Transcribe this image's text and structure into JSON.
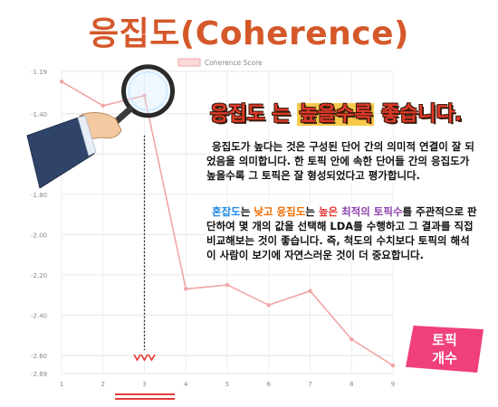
{
  "title": "응집도(Coherence)",
  "headline": {
    "part1": "응집도",
    "part2": "는",
    "part3": "높을수록",
    "part4": "좋습니다."
  },
  "paragraph1": "응집도가 높다는 것은 구성된 단어 간의 의미적 연결이 잘 되었음을 의미합니다. 한 토픽 안에 속한 단어들 간의 응집도가 높을수록 그 토픽은 잘 형성되었다고 평가합니다.",
  "paragraph2": {
    "w1": "혼잡도",
    "t1": "는 ",
    "w2": "낮고",
    "t2": " ",
    "w3": "응집도",
    "t3": "는 ",
    "w4": "높은",
    "t4": " ",
    "w5": "최적의 토픽수",
    "t5": "를 주관적으로 판단하여 몇 개의 값을 선택해 LDA를 수행하고 그 결과를 직접 비교해보는 것이 좋습니다. 즉, 척도의 수치보다 토픽의 해석이 사람이 보기에 자연스러운 것이 더 중요합니다."
  },
  "badge": {
    "line1": "토픽",
    "line2": "개수"
  },
  "colors": {
    "line": "#f2a5a5",
    "title": "#d4582a",
    "badge": "#f0407a",
    "arrow": "#e53935"
  },
  "chart_data": {
    "type": "line",
    "legend": "Coherence Score",
    "legend_position": "top",
    "x": [
      1,
      2,
      3,
      4,
      5,
      6,
      7,
      8,
      9
    ],
    "values": [
      -1.24,
      -1.36,
      -1.31,
      -2.27,
      -2.25,
      -2.35,
      -2.28,
      -2.52,
      -2.65
    ],
    "y_ticks": [
      "-1.19",
      "-1.40",
      "-1.60",
      "-1.80",
      "-2.00",
      "-2.20",
      "-2.40",
      "-2.60",
      "-2.69"
    ],
    "y_tick_values": [
      -1.19,
      -1.4,
      -1.6,
      -1.8,
      -2.0,
      -2.2,
      -2.4,
      -2.6,
      -2.69
    ],
    "ylim": [
      -2.69,
      -1.19
    ],
    "xlim": [
      1,
      9
    ],
    "grid": true,
    "highlight_x": 3
  }
}
